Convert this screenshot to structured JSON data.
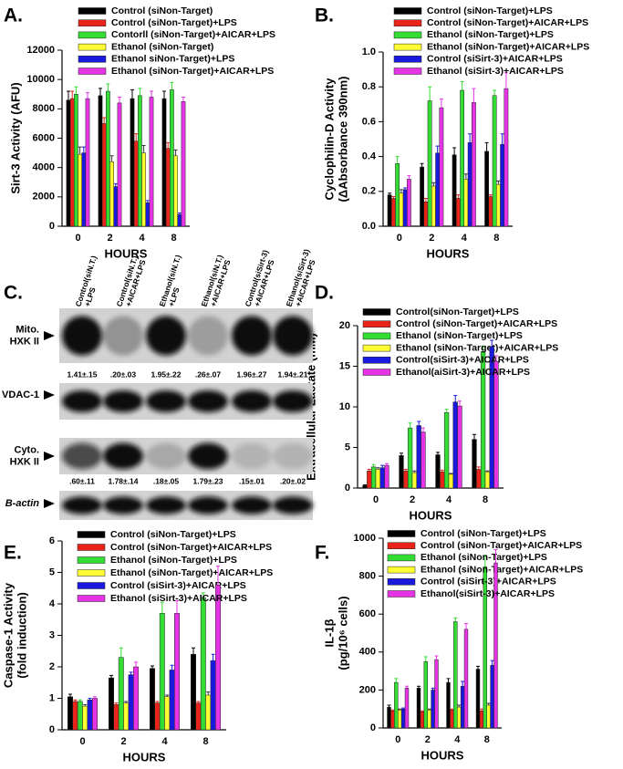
{
  "chart_data": [
    {
      "type": "bar",
      "panel_label": "A.",
      "ylabel": [
        "Sirt-3 Activity (AFU)"
      ],
      "xlabel": "HOURS",
      "categories": [
        "0",
        "2",
        "4",
        "8"
      ],
      "ylim": [
        0,
        12000
      ],
      "yticks": [
        0,
        2000,
        4000,
        6000,
        8000,
        10000,
        12000
      ],
      "series": [
        {
          "name": "Control (siNon-Target)",
          "color": "#000000",
          "values": [
            8600,
            8900,
            8700,
            8700
          ],
          "errors": [
            600,
            500,
            600,
            500
          ]
        },
        {
          "name": "Control (siNon-Target)+LPS",
          "color": "#e8241b",
          "values": [
            8700,
            7000,
            5800,
            5300
          ],
          "errors": [
            500,
            400,
            500,
            400
          ]
        },
        {
          "name": "Contorll (siNon-Target)+AICAR+LPS",
          "color": "#33dd33",
          "values": [
            9000,
            9200,
            8900,
            9300
          ],
          "errors": [
            500,
            500,
            500,
            500
          ]
        },
        {
          "name": "Ethanol (siNon-Target)",
          "color": "#ffff33",
          "values": [
            4900,
            4400,
            5000,
            4800
          ],
          "errors": [
            500,
            400,
            500,
            400
          ]
        },
        {
          "name": "Ethanol siNon-Target)+LPS",
          "color": "#1a1adf",
          "values": [
            5000,
            2700,
            1600,
            800
          ],
          "errors": [
            400,
            200,
            150,
            100
          ]
        },
        {
          "name": "Ethanol (siNon-Target)+AICAR+LPS",
          "color": "#e633e6",
          "values": [
            8700,
            8400,
            8800,
            8500
          ],
          "errors": [
            400,
            400,
            400,
            300
          ]
        }
      ]
    },
    {
      "type": "bar",
      "panel_label": "B.",
      "ylabel": [
        "Cyclophilin-D Activity",
        "(ΔAbsorbance 390nm)"
      ],
      "xlabel": "HOURS",
      "categories": [
        "0",
        "2",
        "4",
        "8"
      ],
      "ylim": [
        0,
        1
      ],
      "yticks": [
        {
          "value": 0,
          "label": "0.0"
        },
        0.2,
        0.4,
        0.6,
        0.8,
        {
          "value": 1,
          "label": "1.0"
        }
      ],
      "series": [
        {
          "name": "Control (siNon-Target)+LPS",
          "color": "#000000",
          "values": [
            0.18,
            0.34,
            0.41,
            0.43
          ],
          "errors": [
            0.01,
            0.02,
            0.04,
            0.05
          ]
        },
        {
          "name": "Control (siNon-Target)+AICAR+LPS",
          "color": "#e8241b",
          "values": [
            0.16,
            0.14,
            0.16,
            0.17
          ],
          "errors": [
            0.01,
            0.02,
            0.02,
            0.01
          ]
        },
        {
          "name": "Ethanol (siNon-Target)+LPS",
          "color": "#33dd33",
          "values": [
            0.36,
            0.72,
            0.78,
            0.75
          ],
          "errors": [
            0.04,
            0.08,
            0.05,
            0.03
          ]
        },
        {
          "name": "Ethanol (siNon-Target)+AICAR+LPS",
          "color": "#ffff33",
          "values": [
            0.19,
            0.23,
            0.27,
            0.24
          ],
          "errors": [
            0.02,
            0.02,
            0.03,
            0.02
          ]
        },
        {
          "name": "Control (siSirt-3)+AICAR+LPS",
          "color": "#1a1adf",
          "values": [
            0.21,
            0.42,
            0.48,
            0.47
          ],
          "errors": [
            0.01,
            0.04,
            0.05,
            0.06
          ]
        },
        {
          "name": "Ethanol (siSirt-3)+AICAR+LPS",
          "color": "#e633e6",
          "values": [
            0.27,
            0.68,
            0.71,
            0.79
          ],
          "errors": [
            0.02,
            0.05,
            0.08,
            0.09
          ]
        }
      ]
    },
    {
      "type": "bar",
      "panel_label": "D.",
      "ylabel": [
        "Extracellular Lactate (mM)"
      ],
      "xlabel": "HOURS",
      "categories": [
        "0",
        "2",
        "4",
        "8"
      ],
      "ylim": [
        0,
        20
      ],
      "yticks": [
        0,
        5,
        10,
        15,
        20
      ],
      "series": [
        {
          "name": "Control(siNon-Target)+LPS",
          "color": "#000000",
          "values": [
            0.3,
            4.0,
            4.1,
            6.0
          ],
          "errors": [
            0.1,
            0.3,
            0.3,
            0.6
          ]
        },
        {
          "name": "Control (siNon-Target)+AICAR+LPS",
          "color": "#e8241b",
          "values": [
            2.1,
            2.1,
            2.0,
            2.3
          ],
          "errors": [
            0.2,
            0.2,
            0.2,
            0.3
          ]
        },
        {
          "name": "Ethanol (siNon-Target)+LPS",
          "color": "#33dd33",
          "values": [
            2.6,
            7.4,
            9.3,
            16.8
          ],
          "errors": [
            0.3,
            0.6,
            0.4,
            0.7
          ]
        },
        {
          "name": "Ethanol (siNon-Target)+AICAR+LPS",
          "color": "#ffff33",
          "values": [
            2.3,
            1.9,
            1.7,
            2.0
          ],
          "errors": [
            0.2,
            0.2,
            0.1,
            0.1
          ]
        },
        {
          "name": "Control(siSirt-3)+AICAR+LPS",
          "color": "#1a1adf",
          "values": [
            2.5,
            7.7,
            10.6,
            17.4
          ],
          "errors": [
            0.3,
            0.5,
            0.8,
            0.8
          ]
        },
        {
          "name": "Ethanol(aiSirt-3)+AICAR+LPS",
          "color": "#e633e6",
          "values": [
            2.8,
            6.9,
            10.1,
            15.6
          ],
          "errors": [
            0.2,
            0.5,
            0.6,
            0.7
          ]
        }
      ]
    },
    {
      "type": "bar",
      "panel_label": "E.",
      "ylabel": [
        "Caspase-1 Activity",
        "(fold induction)"
      ],
      "xlabel": "HOURS",
      "categories": [
        "0",
        "2",
        "4",
        "8"
      ],
      "ylim": [
        0,
        6
      ],
      "yticks": [
        0,
        1,
        2,
        3,
        4,
        5,
        6
      ],
      "series": [
        {
          "name": "Control (siNon-Target)+LPS",
          "color": "#000000",
          "values": [
            1.05,
            1.65,
            1.95,
            2.4
          ],
          "errors": [
            0.08,
            0.08,
            0.08,
            0.2
          ]
        },
        {
          "name": "Control (siNon-Target)+AICAR+LPS",
          "color": "#e8241b",
          "values": [
            0.9,
            0.8,
            0.85,
            0.85
          ],
          "errors": [
            0.05,
            0.05,
            0.05,
            0.05
          ]
        },
        {
          "name": "Ethanol (siNon-Target)+LPS",
          "color": "#33dd33",
          "values": [
            0.9,
            2.3,
            3.7,
            4.2
          ],
          "errors": [
            0.05,
            0.3,
            0.35,
            0.15
          ]
        },
        {
          "name": "Ethanol (siNon-Target)+AICAR+LPS",
          "color": "#ffff33",
          "values": [
            0.75,
            0.85,
            1.05,
            1.1
          ],
          "errors": [
            0.05,
            0.05,
            0.05,
            0.1
          ]
        },
        {
          "name": "Control (siSirt-3)+AICAR+LPS",
          "color": "#1a1adf",
          "values": [
            0.95,
            1.75,
            1.9,
            2.2
          ],
          "errors": [
            0.05,
            0.08,
            0.15,
            0.2
          ]
        },
        {
          "name": "Ethanol (siSirt-3)+AICAR+LPS",
          "color": "#e633e6",
          "values": [
            1.0,
            2.0,
            3.7,
            4.6
          ],
          "errors": [
            0.05,
            0.15,
            0.4,
            0.6
          ]
        }
      ]
    },
    {
      "type": "bar",
      "panel_label": "F.",
      "ylabel": [
        "IL-1β",
        "(pg/10⁶ cells)"
      ],
      "xlabel": "HOURS",
      "categories": [
        "0",
        "2",
        "4",
        "8"
      ],
      "ylim": [
        0,
        1000
      ],
      "yticks": [
        0,
        200,
        400,
        600,
        800,
        1000
      ],
      "series": [
        {
          "name": "Control (siNon-Target)+LPS",
          "color": "#000000",
          "values": [
            110,
            210,
            240,
            310
          ],
          "errors": [
            10,
            10,
            20,
            15
          ]
        },
        {
          "name": "Control (siNon-Target)+AICAR+LPS",
          "color": "#e8241b",
          "values": [
            90,
            85,
            95,
            90
          ],
          "errors": [
            5,
            5,
            5,
            10
          ]
        },
        {
          "name": "Ethanol (siNon-Target)+LPS",
          "color": "#33dd33",
          "values": [
            240,
            350,
            560,
            850
          ],
          "errors": [
            20,
            25,
            20,
            60
          ]
        },
        {
          "name": "Ethanol (siNon-Target)+AICAR+LPS",
          "color": "#ffff33",
          "values": [
            95,
            95,
            110,
            120
          ],
          "errors": [
            5,
            5,
            10,
            10
          ]
        },
        {
          "name": "Control (siSirt-3)+AICAR+LPS",
          "color": "#1a1adf",
          "values": [
            100,
            200,
            220,
            330
          ],
          "errors": [
            5,
            10,
            25,
            25
          ]
        },
        {
          "name": "Ethanol(siSirt-3)+AICAR+LPS",
          "color": "#e633e6",
          "values": [
            210,
            360,
            520,
            870
          ],
          "errors": [
            10,
            20,
            30,
            70
          ]
        }
      ]
    }
  ],
  "blot": {
    "panel_label": "C.",
    "lanes": [
      [
        "Control(siN.T.)",
        "+LPS"
      ],
      [
        "Control(siN.T.)",
        "+AICAR+LPS"
      ],
      [
        "Ethanol(siN.T.)",
        "+LPS"
      ],
      [
        "Ethanol(siN.T.)",
        "+AICAR+LPS"
      ],
      [
        "Control(siSirt-3)",
        "+AICAR+LPS"
      ],
      [
        "Ethanol(siSirt-3)",
        "+AICAR+LPS"
      ]
    ],
    "rows": [
      {
        "label": [
          "Mito.",
          "HXK II"
        ],
        "quant": [
          "1.41±.15",
          ".20±.03",
          "1.95±.22",
          ".26±.07",
          "1.96±.27",
          "1.94±.21"
        ]
      },
      {
        "label": [
          "VDAC-1"
        ]
      },
      {
        "label": [
          "Cyto.",
          "HXK II"
        ],
        "quant": [
          ".60±.11",
          "1.78±.14",
          ".18±.05",
          "1.79±.23",
          ".15±.01",
          ".20±.02"
        ]
      },
      {
        "label": [
          "B-actin"
        ]
      }
    ]
  }
}
